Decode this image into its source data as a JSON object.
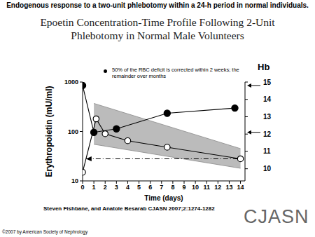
{
  "header": "Endogenous response to a two-unit phlebotomy within a 24-h period in normal individuals.",
  "chart_data": {
    "type": "line",
    "title": "Epoetin Concentration-Time Profile Following 2-Unit Phlebotomy in Normal Male Volunteers",
    "x_label": "Time (days)",
    "y_label": "Erythropoietin (mU/ml)",
    "y2_label": "Hb",
    "annotation": "50% of the RBC deficit is corrected within 2 weeks; the remainder over months",
    "xlim": [
      0,
      14.4
    ],
    "xticks": [
      0,
      1,
      2,
      3,
      4,
      5,
      6,
      7,
      8,
      9,
      10,
      11,
      12,
      13,
      14
    ],
    "ylim": [
      10,
      1000
    ],
    "yticks": [
      10,
      100,
      1000
    ],
    "log": "y",
    "y2lim": [
      9.3,
      15
    ],
    "y2ticks": [
      10,
      11,
      12,
      13,
      14,
      15
    ],
    "grid": false,
    "series": [
      {
        "type": "range",
        "color": "#b4b4b4",
        "x": [
          1,
          14
        ],
        "low": [
          55,
          18
        ],
        "high": [
          370,
          45
        ]
      },
      {
        "type": "line",
        "marker": "open_circle",
        "color": "#000000",
        "x": [
          0,
          1.2,
          2,
          4,
          7.5,
          14
        ],
        "values": [
          15,
          180,
          90,
          65,
          48,
          28
        ]
      },
      {
        "type": "line",
        "marker": "filled_circle",
        "color": "#000000",
        "axis": "y2",
        "x": [
          0,
          1,
          3,
          7.5,
          13.5
        ],
        "values": [
          14.8,
          12.1,
          12.3,
          13.2,
          13.5
        ]
      }
    ],
    "reference_line": {
      "y": 28,
      "x": [
        0.3,
        14
      ],
      "line_style": "dashdot"
    },
    "y2_arrows": [
      14.8,
      12.1
    ]
  },
  "source": "Steven Fishbane, and Anatole Besarab CJASN 2007;2:1274-1282",
  "logo": "CJASN",
  "copyright": "©2007 by American Society of Nephrology"
}
